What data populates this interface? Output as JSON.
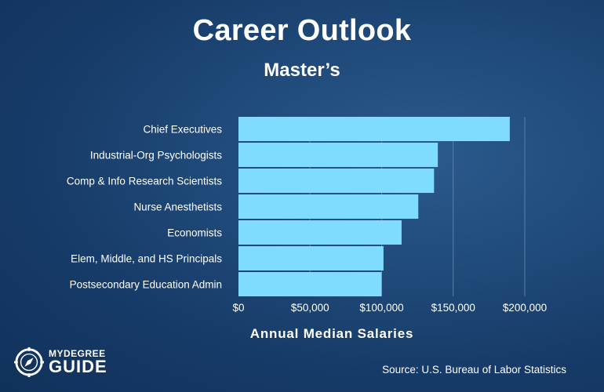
{
  "header": {
    "title": "Career Outlook",
    "subtitle": "Master’s"
  },
  "footer": {
    "source": "Source: U.S. Bureau of Labor Statistics",
    "logo_line1": "MYDEGREE",
    "logo_line2": "GUIDE"
  },
  "colors": {
    "bar": "#7fdcff",
    "grid": "#5b7fa8"
  },
  "chart_data": {
    "type": "bar",
    "orientation": "horizontal",
    "categories": [
      "Chief Executives",
      "Industrial-Org Psychologists",
      "Comp & Info Research Scientists",
      "Nurse Anesthetists",
      "Economists",
      "Elem, Middle, and HS Principals",
      "Postsecondary Education Admin"
    ],
    "values": [
      189520,
      139280,
      136620,
      125620,
      113940,
      101320,
      99940
    ],
    "xlabel": "Annual Median Salaries",
    "xlim": [
      0,
      200000
    ],
    "xticks": [
      0,
      50000,
      100000,
      150000,
      200000
    ],
    "xtick_labels": [
      "$0",
      "$50,000",
      "$100,000",
      "$150,000",
      "$200,000"
    ],
    "grid": true
  }
}
